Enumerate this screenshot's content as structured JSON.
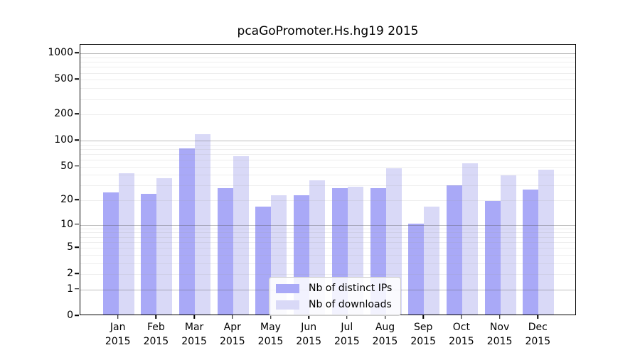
{
  "title": "pcaGoPromoter.Hs.hg19 2015",
  "colors": {
    "ips_bar": "#a9a9f7",
    "downloads_bar": "#d9d9f7",
    "axis": "#000000",
    "legend_border": "#cccccc"
  },
  "y_axis": {
    "tick_labels": [
      0,
      1,
      2,
      5,
      10,
      20,
      50,
      100,
      200,
      500,
      1000
    ],
    "major_gridlines": [
      1,
      10,
      100,
      1000
    ],
    "minor_gridlines": [
      2,
      3,
      4,
      5,
      6,
      7,
      8,
      9,
      20,
      30,
      40,
      50,
      60,
      70,
      80,
      90,
      200,
      300,
      400,
      500,
      600,
      700,
      800,
      900
    ]
  },
  "legend": {
    "entries": [
      {
        "label": "Nb of distinct IPs",
        "series": "ips"
      },
      {
        "label": "Nb of downloads",
        "series": "downloads"
      }
    ]
  },
  "chart_data": {
    "type": "bar",
    "title": "pcaGoPromoter.Hs.hg19 2015",
    "categories": [
      "Jan 2015",
      "Feb 2015",
      "Mar 2015",
      "Apr 2015",
      "May 2015",
      "Jun 2015",
      "Jul 2015",
      "Aug 2015",
      "Sep 2015",
      "Oct 2015",
      "Nov 2015",
      "Dec 2015"
    ],
    "series": [
      {
        "name": "Nb of distinct IPs",
        "color": "#a9a9f7",
        "values": [
          24,
          23,
          79,
          27,
          16,
          22,
          27,
          27,
          10,
          29,
          19,
          26
        ]
      },
      {
        "name": "Nb of downloads",
        "color": "#d9d9f7",
        "values": [
          40,
          35,
          114,
          64,
          22,
          33,
          28,
          46,
          16,
          53,
          38,
          44
        ]
      }
    ],
    "xlabel": "",
    "ylabel": "",
    "yscale": "log10(1+v), ticks at 0,1,2,5,10,20,50,100,200,500,1000",
    "ylim": [
      0,
      1260
    ],
    "grid": "on, drawn above bars",
    "legend_position": "inside bottom-center"
  }
}
